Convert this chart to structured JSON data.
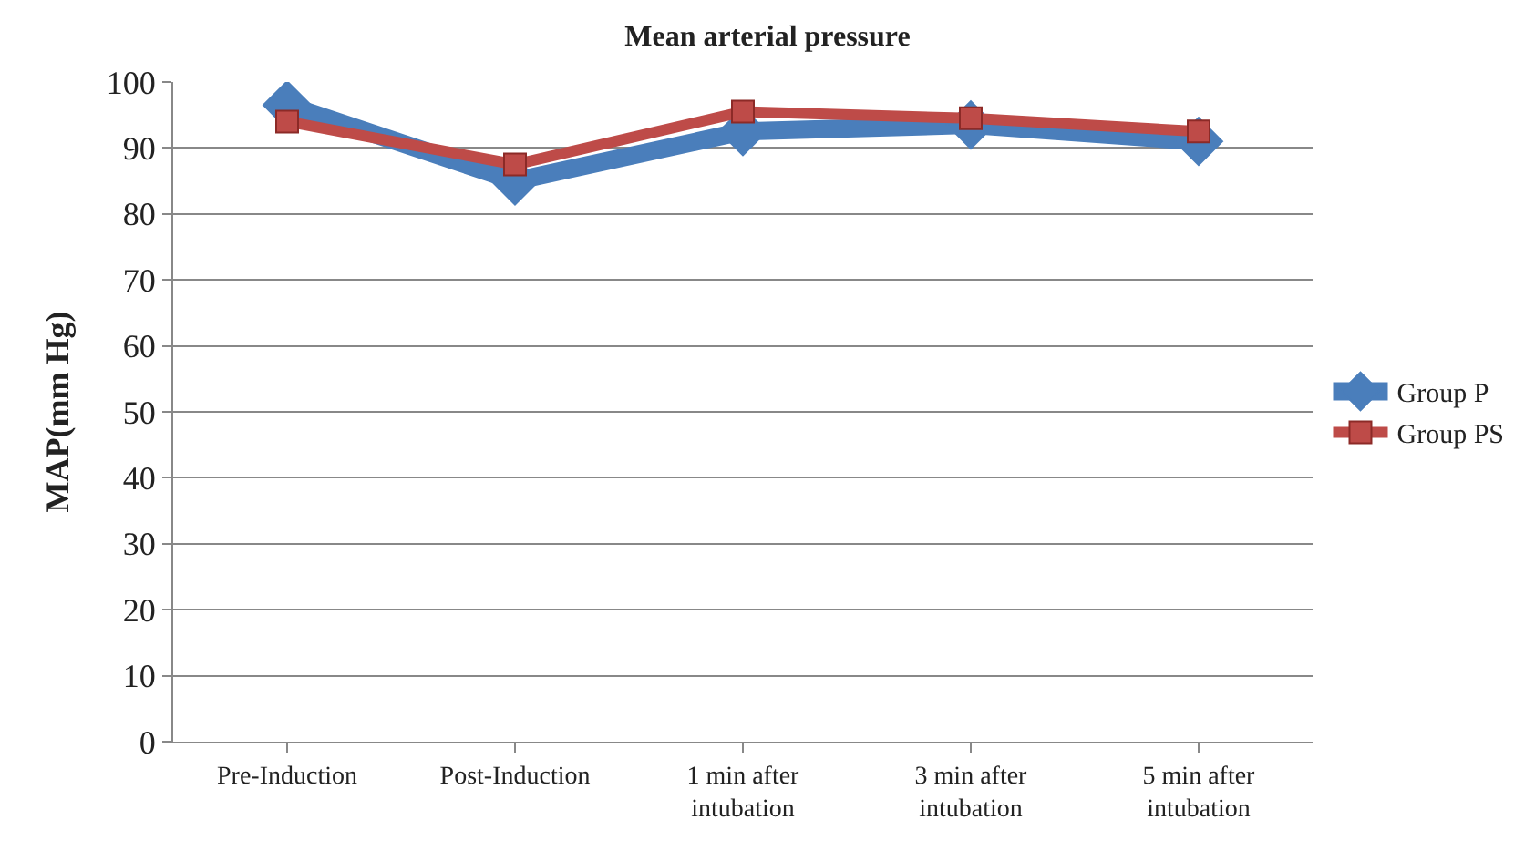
{
  "chart_data": {
    "type": "line",
    "title": "Mean arterial pressure",
    "ylabel": "MAP(mm Hg)",
    "categories": [
      "Pre-Induction",
      "Post-Induction",
      "1 min after intubation",
      "3 min after intubation",
      "5 min after intubation"
    ],
    "series": [
      {
        "name": "Group P",
        "color": "#4a7ebb",
        "values": [
          96.5,
          85,
          92.5,
          93.5,
          91
        ],
        "marker": "diamond"
      },
      {
        "name": "Group PS",
        "color": "#be4b48",
        "values": [
          94,
          87.5,
          95.5,
          94.5,
          92.5
        ],
        "marker": "square"
      }
    ],
    "ylim": [
      0,
      100
    ],
    "yticks": [
      0,
      10,
      20,
      30,
      40,
      50,
      60,
      70,
      80,
      90,
      100
    ],
    "grid": "y",
    "legend": "right",
    "line_style": "solid"
  }
}
